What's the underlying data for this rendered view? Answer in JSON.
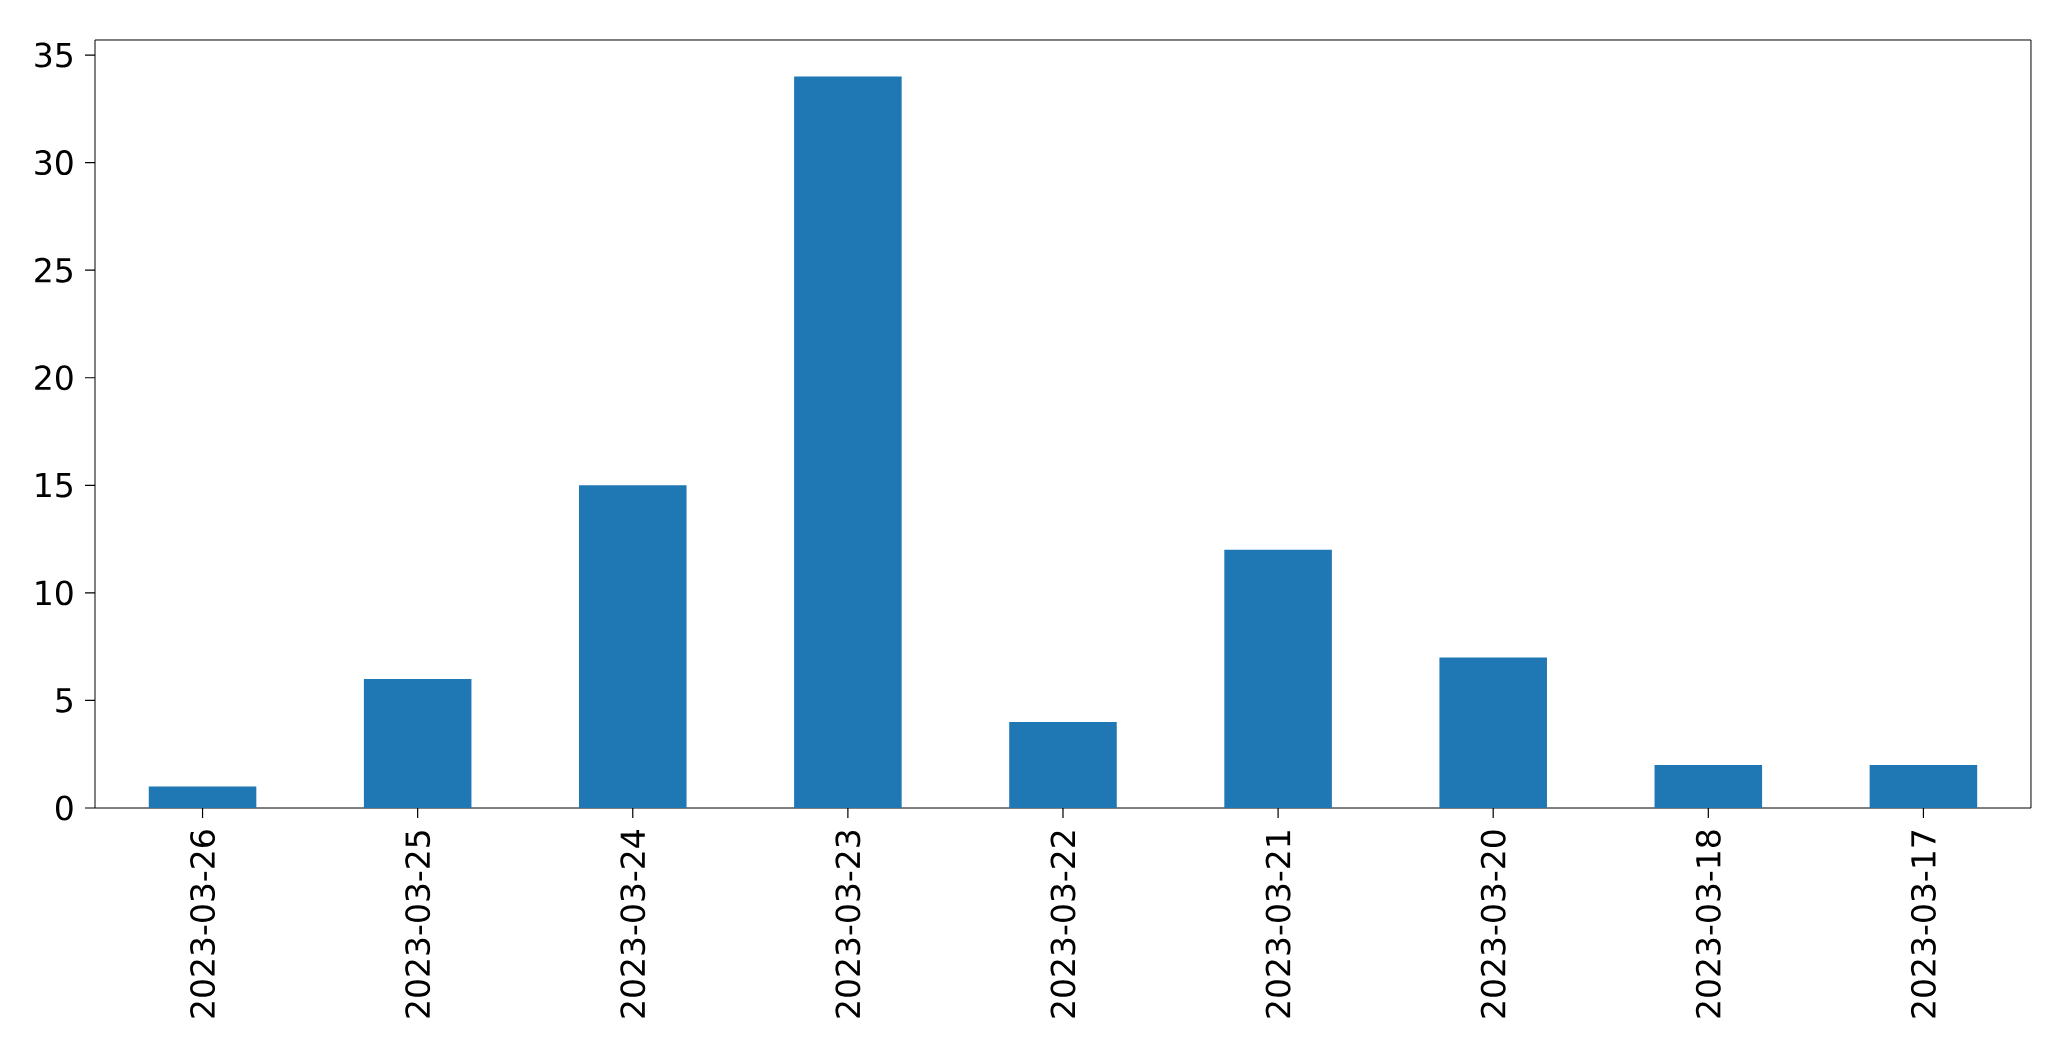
{
  "chart_data": {
    "type": "bar",
    "categories": [
      "2023-03-26",
      "2023-03-25",
      "2023-03-24",
      "2023-03-23",
      "2023-03-22",
      "2023-03-21",
      "2023-03-20",
      "2023-03-18",
      "2023-03-17"
    ],
    "values": [
      1,
      6,
      15,
      34,
      4,
      12,
      7,
      2,
      2
    ],
    "color": "#1f77b4",
    "ylim": [
      0,
      35.7
    ],
    "yticks": [
      0,
      5,
      10,
      15,
      20,
      25,
      30,
      35
    ],
    "grid": false
  }
}
